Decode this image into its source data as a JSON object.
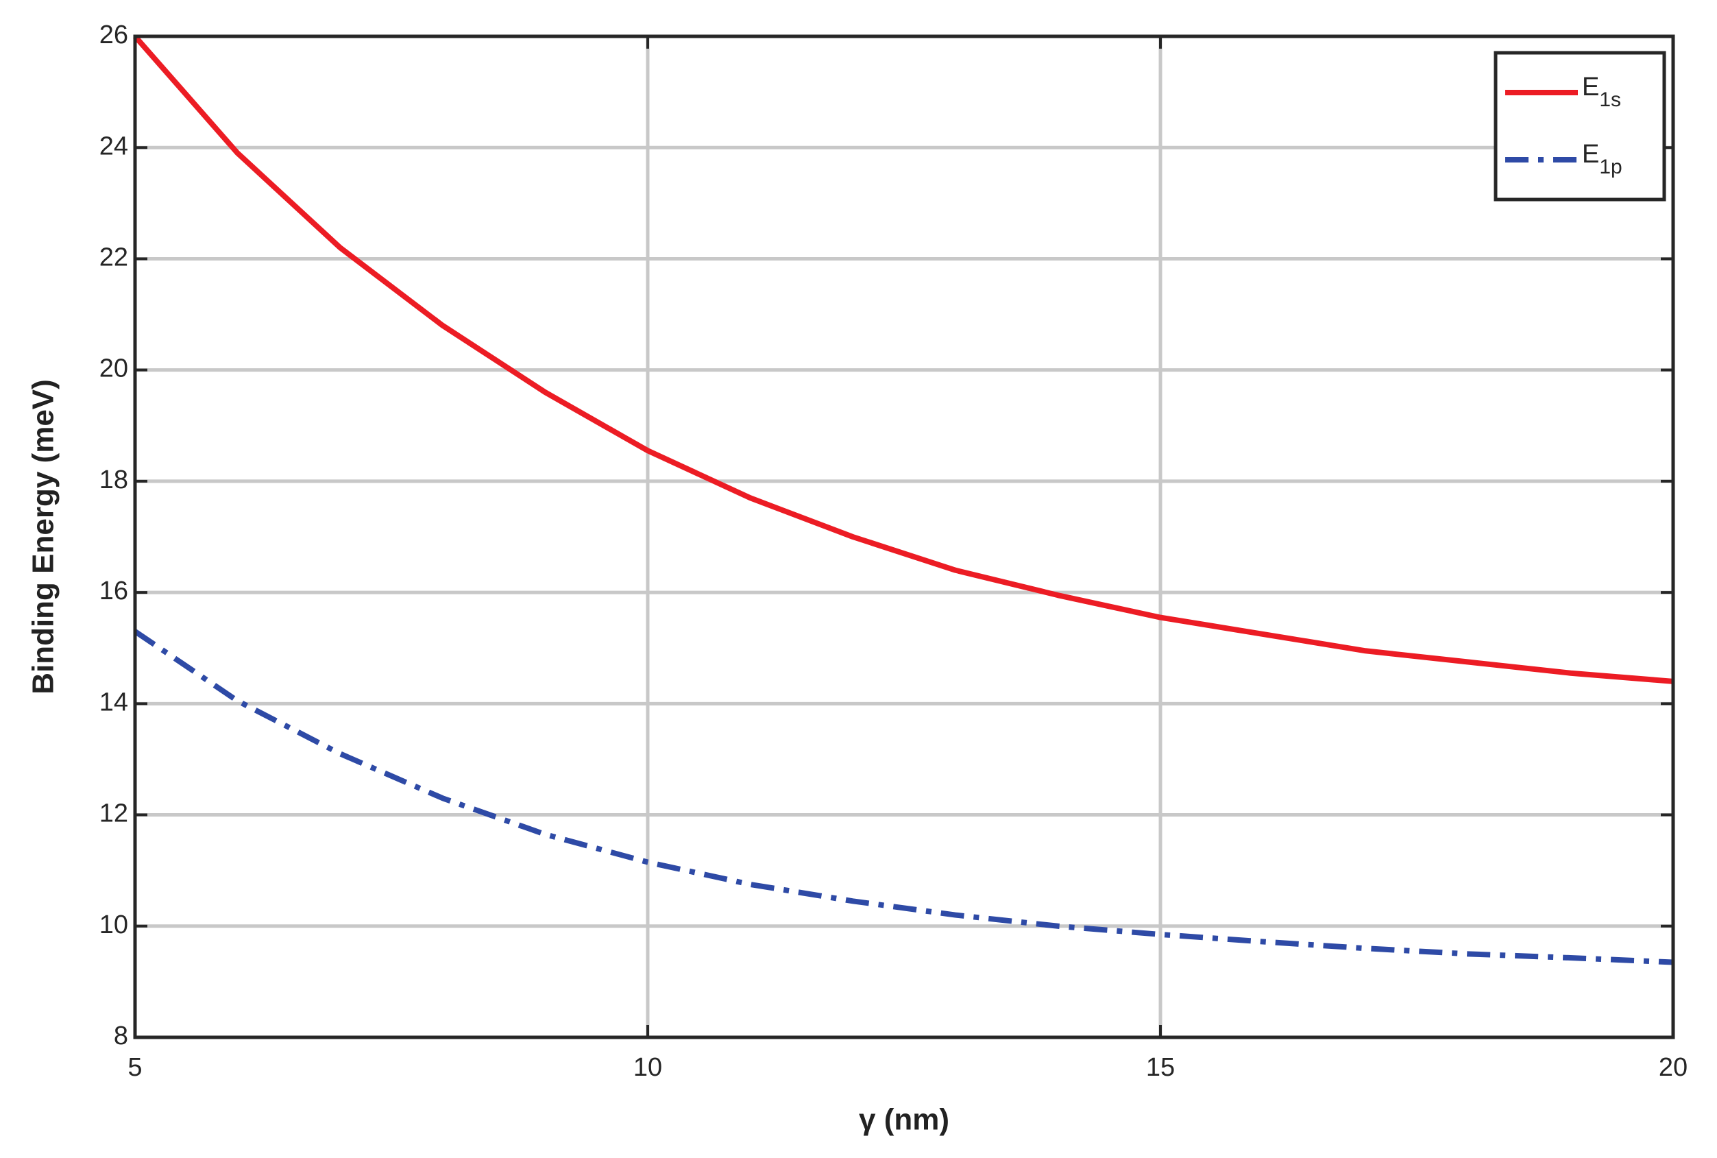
{
  "chart_data": {
    "type": "line",
    "xlabel": "γ (nm)",
    "ylabel": "Binding Energy (meV)",
    "x": [
      5,
      6,
      7,
      8,
      9,
      10,
      11,
      12,
      13,
      14,
      15,
      16,
      17,
      18,
      19,
      20
    ],
    "series": [
      {
        "name": "E1s",
        "color": "#ec1c24",
        "dash": "solid",
        "values": [
          26.0,
          23.9,
          22.2,
          20.8,
          19.6,
          18.55,
          17.7,
          17.0,
          16.4,
          15.95,
          15.55,
          15.25,
          14.95,
          14.75,
          14.55,
          14.4
        ]
      },
      {
        "name": "E1p",
        "color": "#2e4aa6",
        "dash": "dashdot",
        "values": [
          15.3,
          14.05,
          13.1,
          12.3,
          11.65,
          11.15,
          10.75,
          10.45,
          10.2,
          10.0,
          9.85,
          9.72,
          9.6,
          9.5,
          9.43,
          9.35
        ]
      }
    ],
    "xlim": [
      5,
      20
    ],
    "xticks": [
      5,
      10,
      15,
      20
    ],
    "ylim": [
      8,
      26
    ],
    "yticks": [
      8,
      10,
      12,
      14,
      16,
      18,
      20,
      22,
      24,
      26
    ],
    "grid": true,
    "legend": "upper right"
  }
}
